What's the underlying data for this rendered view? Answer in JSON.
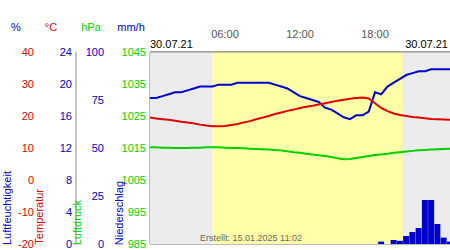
{
  "chart_data": {
    "type": "line",
    "x_start_label": "30.07.21",
    "x_end_label": "30.07.21",
    "annotation": "Erstellt: 15.01.2025 11:02",
    "xlim": [
      0,
      24
    ],
    "xticks": [
      {
        "value": 6,
        "label": "06:00"
      },
      {
        "value": 12,
        "label": "12:00"
      },
      {
        "value": 18,
        "label": "18:00"
      }
    ],
    "grid": true,
    "daylight": [
      5,
      20.2
    ],
    "x": [
      0,
      0.5,
      1,
      1.5,
      2,
      2.5,
      3,
      3.5,
      4,
      4.5,
      5,
      5.5,
      6,
      6.5,
      7,
      7.5,
      8,
      8.5,
      9,
      9.5,
      10,
      10.5,
      11,
      11.5,
      12,
      12.5,
      13,
      13.5,
      14,
      14.5,
      15,
      15.5,
      16,
      16.5,
      17,
      17.5,
      18,
      18.5,
      19,
      19.5,
      20,
      20.5,
      21,
      21.5,
      22,
      22.5,
      23,
      23.5,
      24
    ],
    "series": [
      {
        "name": "Luftfeuchtigkeit",
        "unit": "%",
        "color": "#0000cc",
        "type": "line",
        "ylim": [
          0,
          100
        ],
        "yticks": [
          0,
          25,
          50,
          75,
          100
        ],
        "values": [
          76,
          76,
          77,
          78,
          79,
          79,
          80,
          81,
          82,
          82,
          82,
          83,
          83,
          83,
          84,
          84,
          84,
          84,
          84,
          84,
          83,
          82,
          81,
          79,
          77,
          76,
          75,
          74,
          71,
          70,
          68,
          66,
          65,
          67,
          67,
          69,
          79,
          78,
          82,
          84,
          86,
          88,
          89,
          90,
          90,
          91,
          91,
          91,
          91
        ]
      },
      {
        "name": "Temperatur",
        "unit": "°C",
        "color": "#e00000",
        "type": "line",
        "ylim": [
          -20,
          40
        ],
        "yticks": [
          -20,
          -10,
          0,
          10,
          20,
          30,
          40
        ],
        "values": [
          19.5,
          19.2,
          19.0,
          18.8,
          18.5,
          18.2,
          18.0,
          17.7,
          17.3,
          17.0,
          16.8,
          16.8,
          16.9,
          17.2,
          17.5,
          18.0,
          18.4,
          19.0,
          19.5,
          20.0,
          20.6,
          21.1,
          21.6,
          22.0,
          22.5,
          22.9,
          23.2,
          23.6,
          24.0,
          24.4,
          24.8,
          25.1,
          25.4,
          25.6,
          25.8,
          25.5,
          24.0,
          22.5,
          21.5,
          20.8,
          20.3,
          20.0,
          19.7,
          19.5,
          19.3,
          19.1,
          19.0,
          18.9,
          18.8
        ]
      },
      {
        "name": "Luftdruck",
        "unit": "hPa",
        "color": "#00d000",
        "type": "line",
        "ylim": [
          985,
          1045
        ],
        "yticks": [
          985,
          995,
          1005,
          1015,
          1025,
          1035,
          1045
        ],
        "values": [
          1015.2,
          1015.2,
          1015.1,
          1015.1,
          1015.0,
          1015.0,
          1015.0,
          1015.1,
          1015.1,
          1015.2,
          1015.2,
          1015.2,
          1015.1,
          1015.0,
          1015.0,
          1014.9,
          1014.8,
          1014.7,
          1014.6,
          1014.5,
          1014.4,
          1014.2,
          1014.0,
          1013.7,
          1013.5,
          1013.2,
          1013.0,
          1012.7,
          1012.5,
          1012.2,
          1011.8,
          1011.5,
          1011.6,
          1011.9,
          1012.2,
          1012.5,
          1012.8,
          1013.0,
          1013.2,
          1013.5,
          1013.7,
          1013.9,
          1014.1,
          1014.3,
          1014.4,
          1014.5,
          1014.6,
          1014.7,
          1014.8
        ]
      },
      {
        "name": "Niederschlag",
        "unit": "mm/h",
        "color": "#0000cc",
        "type": "bar",
        "ylim": [
          0,
          24
        ],
        "yticks": [
          0,
          4,
          8,
          12,
          16,
          20,
          24
        ],
        "values": [
          0,
          0,
          0,
          0,
          0,
          0,
          0,
          0,
          0,
          0,
          0,
          0,
          0,
          0,
          0,
          0,
          0,
          0,
          0,
          0,
          0,
          0,
          0,
          0,
          0,
          0,
          0,
          0,
          0,
          0,
          0,
          0,
          0,
          0,
          0,
          0,
          0,
          0.3,
          0,
          0.5,
          0.4,
          1.0,
          1.5,
          2.0,
          5.5,
          5.5,
          2.5,
          0.8,
          0.3
        ]
      }
    ]
  }
}
